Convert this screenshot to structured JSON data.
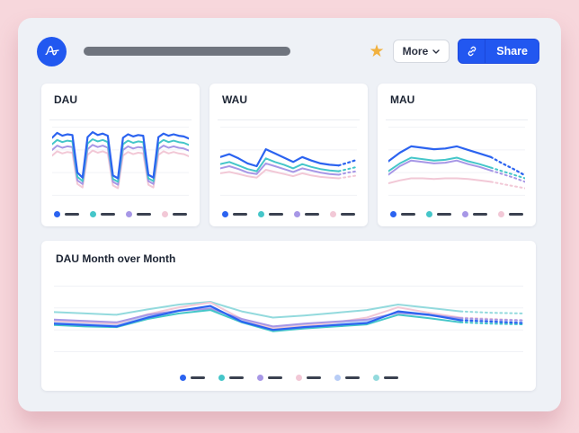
{
  "toolbar": {
    "more_label": "More",
    "share_label": "Share"
  },
  "header": {
    "dashboard_title_redacted": true
  },
  "colors": {
    "page_bg": "#f7d7dc",
    "panel_bg": "#eef1f6",
    "brand_blue": "#2158f0",
    "share_bg": "#2257f0",
    "star": "#f1b13f",
    "grid": "#f0f2f6",
    "legend_dash": "#3a4150",
    "title_text": "#1c2433",
    "series_blue": "#2b63f0",
    "series_teal": "#45c6c9",
    "series_purple": "#a797e6",
    "series_pink": "#f2c8d6",
    "series_periwinkle": "#b8cdf6",
    "series_light_teal": "#93dadd"
  },
  "chart_data": [
    {
      "name": "dau",
      "type": "line",
      "title": "DAU",
      "legend_labels_redacted": true,
      "legend_position": "bottom",
      "gridlines": [
        2,
        34,
        66,
        98
      ],
      "value_scale": "percent-of-chart-height",
      "series": [
        {
          "name": "series-blue",
          "color": "#2b63f0",
          "width": 2.2,
          "values": [
            83,
            90,
            86,
            88,
            87,
            34,
            27,
            84,
            91,
            87,
            89,
            86,
            30,
            26,
            83,
            88,
            85,
            87,
            86,
            31,
            27,
            84,
            89,
            86,
            88,
            86,
            85,
            82
          ]
        },
        {
          "name": "series-teal",
          "color": "#45c6c9",
          "width": 2,
          "values": [
            74,
            80,
            77,
            79,
            78,
            28,
            22,
            75,
            81,
            78,
            80,
            77,
            25,
            21,
            74,
            79,
            76,
            78,
            77,
            26,
            22,
            75,
            80,
            77,
            79,
            77,
            76,
            73
          ]
        },
        {
          "name": "series-purple",
          "color": "#a797e6",
          "width": 2,
          "values": [
            66,
            72,
            69,
            71,
            70,
            23,
            18,
            67,
            73,
            70,
            72,
            69,
            21,
            17,
            66,
            71,
            68,
            70,
            69,
            22,
            18,
            67,
            72,
            69,
            71,
            69,
            68,
            65
          ]
        },
        {
          "name": "series-pink",
          "color": "#f2c8d6",
          "width": 2,
          "values": [
            58,
            64,
            61,
            63,
            62,
            18,
            13,
            59,
            65,
            62,
            64,
            61,
            16,
            12,
            58,
            63,
            60,
            62,
            61,
            17,
            13,
            59,
            64,
            61,
            63,
            61,
            60,
            57
          ]
        }
      ]
    },
    {
      "name": "wau",
      "type": "line",
      "title": "WAU",
      "legend_labels_redacted": true,
      "legend_position": "bottom",
      "gridlines": [
        2,
        34,
        66,
        98
      ],
      "value_scale": "percent-of-chart-height",
      "series": [
        {
          "name": "series-blue",
          "color": "#2b63f0",
          "width": 2.2,
          "dotted_from": 13,
          "values": [
            56,
            60,
            54,
            47,
            43,
            67,
            61,
            55,
            49,
            56,
            51,
            47,
            45,
            44,
            48,
            52
          ]
        },
        {
          "name": "series-teal",
          "color": "#45c6c9",
          "width": 2,
          "dotted_from": 13,
          "values": [
            46,
            49,
            44,
            39,
            36,
            54,
            49,
            45,
            40,
            46,
            42,
            39,
            37,
            36,
            39,
            42
          ]
        },
        {
          "name": "series-purple",
          "color": "#a797e6",
          "width": 2,
          "dotted_from": 13,
          "values": [
            40,
            43,
            39,
            34,
            32,
            47,
            43,
            39,
            35,
            40,
            37,
            34,
            32,
            31,
            34,
            36
          ]
        },
        {
          "name": "series-pink",
          "color": "#f2c8d6",
          "width": 2,
          "dotted_from": 13,
          "values": [
            33,
            35,
            32,
            29,
            27,
            38,
            35,
            32,
            29,
            33,
            30,
            28,
            27,
            26,
            28,
            30
          ]
        }
      ]
    },
    {
      "name": "mau",
      "type": "line",
      "title": "MAU",
      "legend_labels_redacted": true,
      "legend_position": "bottom",
      "gridlines": [
        2,
        34,
        66,
        98
      ],
      "value_scale": "percent-of-chart-height",
      "series": [
        {
          "name": "series-blue",
          "color": "#2b63f0",
          "width": 2.2,
          "dotted_from": 9,
          "values": [
            50,
            62,
            71,
            69,
            67,
            68,
            71,
            66,
            61,
            56,
            47,
            39,
            30
          ]
        },
        {
          "name": "series-teal",
          "color": "#45c6c9",
          "width": 2,
          "dotted_from": 9,
          "values": [
            36,
            47,
            55,
            53,
            51,
            52,
            55,
            50,
            46,
            41,
            36,
            31,
            26
          ]
        },
        {
          "name": "series-purple",
          "color": "#a797e6",
          "width": 2,
          "dotted_from": 9,
          "values": [
            31,
            43,
            51,
            49,
            47,
            48,
            51,
            46,
            42,
            37,
            32,
            27,
            21
          ]
        },
        {
          "name": "series-pink",
          "color": "#f2c8d6",
          "width": 2,
          "dotted_from": 9,
          "values": [
            19,
            23,
            26,
            26,
            25,
            26,
            26,
            25,
            23,
            21,
            18,
            15,
            12
          ]
        }
      ]
    },
    {
      "name": "dau-mom",
      "type": "line",
      "title": "DAU Month over Month",
      "legend_labels_redacted": true,
      "legend_position": "bottom",
      "gridlines": [
        2,
        34,
        66,
        98
      ],
      "value_scale": "percent-of-chart-height",
      "series": [
        {
          "name": "series-blue",
          "color": "#2b63f0",
          "width": 2.2,
          "dotted_from": 13,
          "values": [
            43,
            41,
            39,
            52,
            62,
            69,
            46,
            34,
            38,
            41,
            44,
            61,
            56,
            48,
            46,
            44
          ]
        },
        {
          "name": "series-teal",
          "color": "#45c6c9",
          "width": 2,
          "dotted_from": 13,
          "values": [
            41,
            39,
            38,
            50,
            58,
            63,
            45,
            32,
            36,
            39,
            42,
            56,
            51,
            45,
            43,
            42
          ]
        },
        {
          "name": "series-purple",
          "color": "#a797e6",
          "width": 2,
          "dotted_from": 13,
          "values": [
            49,
            47,
            45,
            56,
            62,
            65,
            50,
            39,
            43,
            46,
            49,
            59,
            56,
            51,
            49,
            48
          ]
        },
        {
          "name": "series-pink",
          "color": "#f2c8d6",
          "width": 2,
          "dotted_from": 13,
          "values": [
            47,
            45,
            43,
            57,
            67,
            74,
            50,
            36,
            40,
            45,
            52,
            67,
            59,
            52,
            50,
            48
          ]
        },
        {
          "name": "series-periwinkle",
          "color": "#b8cdf6",
          "width": 2,
          "dotted_from": 13,
          "values": [
            45,
            43,
            41,
            54,
            63,
            67,
            48,
            37,
            41,
            44,
            47,
            59,
            55,
            50,
            48,
            47
          ]
        },
        {
          "name": "series-light-teal",
          "color": "#93dadd",
          "width": 2,
          "dotted_from": 13,
          "values": [
            60,
            58,
            56,
            64,
            71,
            75,
            61,
            52,
            55,
            59,
            63,
            71,
            66,
            61,
            59,
            58
          ]
        }
      ]
    }
  ]
}
